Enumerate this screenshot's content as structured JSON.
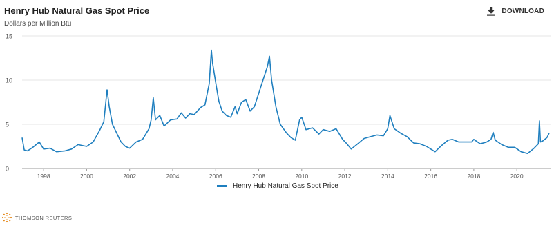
{
  "header": {
    "title": "Henry Hub Natural Gas Spot Price",
    "subtitle": "Dollars per Million Btu",
    "download_label": "DOWNLOAD",
    "download_icon": "download-icon"
  },
  "footer": {
    "brand": "THOMSON REUTERS",
    "logo_icon": "thomson-reuters-logo"
  },
  "colors": {
    "line": "#1f7fbf",
    "grid": "#e6e6e6",
    "axis": "#999999"
  },
  "chart_data": {
    "type": "line",
    "title": "Henry Hub Natural Gas Spot Price",
    "ylabel": "Dollars per Million Btu",
    "xlim": [
      1997.0,
      2021.6
    ],
    "ylim": [
      0,
      15
    ],
    "xticks": [
      1998,
      2000,
      2002,
      2004,
      2006,
      2008,
      2010,
      2012,
      2014,
      2016,
      2018,
      2020
    ],
    "yticks": [
      0,
      5,
      10,
      15
    ],
    "grid": "horizontal",
    "legend": "bottom-center",
    "series": [
      {
        "name": "Henry Hub Natural Gas Spot Price",
        "x": [
          1997.0,
          1997.1,
          1997.25,
          1997.5,
          1997.8,
          1998.0,
          1998.3,
          1998.6,
          1999.0,
          1999.3,
          1999.6,
          2000.0,
          2000.3,
          2000.6,
          2000.8,
          2000.95,
          2001.05,
          2001.2,
          2001.4,
          2001.6,
          2001.8,
          2002.0,
          2002.3,
          2002.6,
          2002.9,
          2003.0,
          2003.1,
          2003.2,
          2003.4,
          2003.6,
          2003.9,
          2004.2,
          2004.4,
          2004.6,
          2004.8,
          2005.0,
          2005.3,
          2005.5,
          2005.7,
          2005.8,
          2005.85,
          2005.95,
          2006.05,
          2006.15,
          2006.3,
          2006.5,
          2006.7,
          2006.9,
          2007.0,
          2007.2,
          2007.4,
          2007.6,
          2007.8,
          2008.0,
          2008.2,
          2008.4,
          2008.5,
          2008.6,
          2008.8,
          2009.0,
          2009.3,
          2009.5,
          2009.7,
          2009.9,
          2010.0,
          2010.2,
          2010.5,
          2010.8,
          2011.0,
          2011.3,
          2011.6,
          2011.9,
          2012.1,
          2012.3,
          2012.6,
          2012.9,
          2013.2,
          2013.5,
          2013.8,
          2014.0,
          2014.1,
          2014.3,
          2014.6,
          2014.9,
          2015.2,
          2015.5,
          2015.8,
          2016.0,
          2016.2,
          2016.5,
          2016.8,
          2017.0,
          2017.3,
          2017.6,
          2017.9,
          2018.0,
          2018.3,
          2018.6,
          2018.8,
          2018.9,
          2019.0,
          2019.3,
          2019.6,
          2019.9,
          2020.2,
          2020.5,
          2020.8,
          2021.0,
          2021.05,
          2021.1,
          2021.2,
          2021.4,
          2021.5
        ],
        "values": [
          3.5,
          2.1,
          2.0,
          2.4,
          3.0,
          2.2,
          2.3,
          1.9,
          2.0,
          2.2,
          2.7,
          2.5,
          3.0,
          4.3,
          5.3,
          8.9,
          7.0,
          5.0,
          4.0,
          3.0,
          2.5,
          2.3,
          3.0,
          3.3,
          4.5,
          5.5,
          8.0,
          5.5,
          6.0,
          4.8,
          5.5,
          5.6,
          6.3,
          5.7,
          6.2,
          6.1,
          6.9,
          7.2,
          9.6,
          13.4,
          12.0,
          10.5,
          9.0,
          7.6,
          6.5,
          6.0,
          5.8,
          7.0,
          6.2,
          7.5,
          7.8,
          6.5,
          7.0,
          8.5,
          10.0,
          11.5,
          12.7,
          10.0,
          7.0,
          5.0,
          4.0,
          3.5,
          3.2,
          5.5,
          5.8,
          4.4,
          4.6,
          3.9,
          4.4,
          4.2,
          4.5,
          3.3,
          2.8,
          2.2,
          2.8,
          3.4,
          3.6,
          3.8,
          3.7,
          4.5,
          6.0,
          4.5,
          4.0,
          3.6,
          2.9,
          2.8,
          2.5,
          2.2,
          1.9,
          2.6,
          3.2,
          3.3,
          3.0,
          3.0,
          3.0,
          3.3,
          2.8,
          3.0,
          3.3,
          4.1,
          3.2,
          2.7,
          2.4,
          2.4,
          1.9,
          1.7,
          2.3,
          2.8,
          5.4,
          3.0,
          3.1,
          3.5,
          4.0
        ]
      }
    ]
  }
}
